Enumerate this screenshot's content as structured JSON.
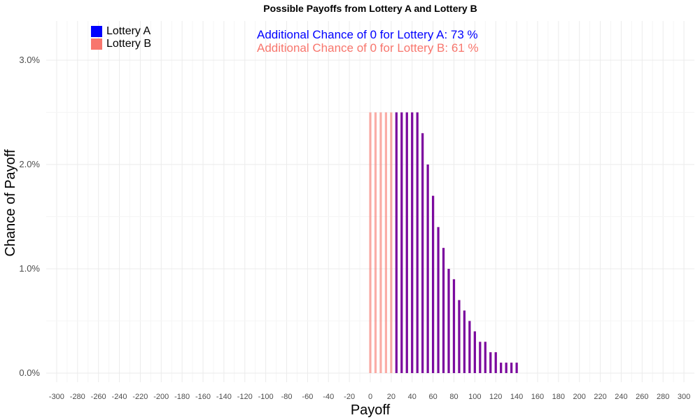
{
  "chart_data": {
    "type": "bar",
    "title": "Possible Payoffs from Lottery A and Lottery B",
    "xlabel": "Payoff",
    "ylabel": "Chance of Payoff",
    "xlim": [
      -310,
      310
    ],
    "ylim": [
      0,
      3.0
    ],
    "x_ticks": [
      -300,
      -280,
      -260,
      -240,
      -220,
      -200,
      -180,
      -160,
      -140,
      -120,
      -100,
      -80,
      -60,
      -40,
      -20,
      0,
      20,
      40,
      60,
      80,
      100,
      120,
      140,
      160,
      180,
      200,
      220,
      240,
      260,
      280,
      300
    ],
    "y_ticks": [
      0,
      1,
      2,
      3
    ],
    "y_tick_labels": [
      "0.0%",
      "1.0%",
      "2.0%",
      "3.0%"
    ],
    "grid": true,
    "legend_position": "top-left",
    "colors": {
      "lottery_a": "#0000ff",
      "lottery_b": "#f8766d",
      "overlap": "#7a0aa0"
    },
    "series": [
      {
        "name": "Lottery A",
        "x": [
          25,
          30,
          35,
          40,
          45,
          50,
          55,
          60,
          65,
          70,
          75,
          80,
          85,
          90,
          95,
          100,
          105,
          110,
          115,
          120,
          125,
          130,
          135,
          140
        ],
        "values": [
          2.5,
          2.5,
          2.5,
          2.5,
          2.5,
          2.3,
          2.0,
          1.7,
          1.4,
          1.2,
          1.0,
          0.9,
          0.7,
          0.6,
          0.5,
          0.4,
          0.3,
          0.3,
          0.2,
          0.2,
          0.1,
          0.1,
          0.1,
          0.1
        ]
      },
      {
        "name": "Lottery B",
        "x": [
          0,
          5,
          10,
          15,
          20,
          25,
          30,
          35,
          40,
          45,
          50,
          55,
          60,
          65,
          70,
          75,
          80,
          85,
          90,
          95,
          100,
          105,
          110,
          115,
          120,
          125,
          130,
          135,
          140
        ],
        "values": [
          2.5,
          2.5,
          2.5,
          2.5,
          2.5,
          2.5,
          2.5,
          2.5,
          2.5,
          2.5,
          2.3,
          2.0,
          1.7,
          1.4,
          1.2,
          1.0,
          0.9,
          0.7,
          0.6,
          0.5,
          0.4,
          0.3,
          0.3,
          0.2,
          0.2,
          0.1,
          0.1,
          0.1,
          0.1
        ]
      }
    ]
  },
  "annotations": {
    "lottery_a_text": "Additional Chance of 0 for Lottery A:  73 %",
    "lottery_b_text": "Additional Chance of 0 for Lottery B:  61 %"
  }
}
